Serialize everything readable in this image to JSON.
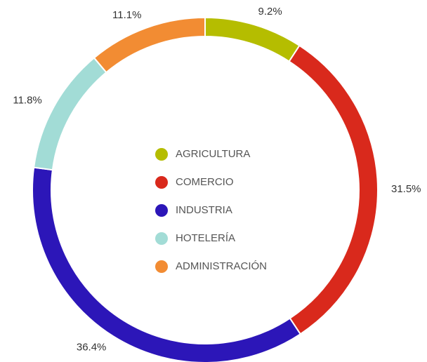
{
  "chart_data": {
    "type": "donut",
    "categories": [
      "AGRICULTURA",
      "COMERCIO",
      "INDUSTRIA",
      "HOTELERÍA",
      "ADMINISTRACIÓN"
    ],
    "values": [
      9.2,
      31.5,
      36.4,
      11.8,
      11.1
    ],
    "value_labels": [
      "9.2%",
      "31.5%",
      "36.4%",
      "11.8%",
      "11.1%"
    ],
    "colors": [
      "#b5bd00",
      "#d9291c",
      "#2c16b8",
      "#a2dcd6",
      "#f28c33"
    ],
    "legend": "center"
  }
}
